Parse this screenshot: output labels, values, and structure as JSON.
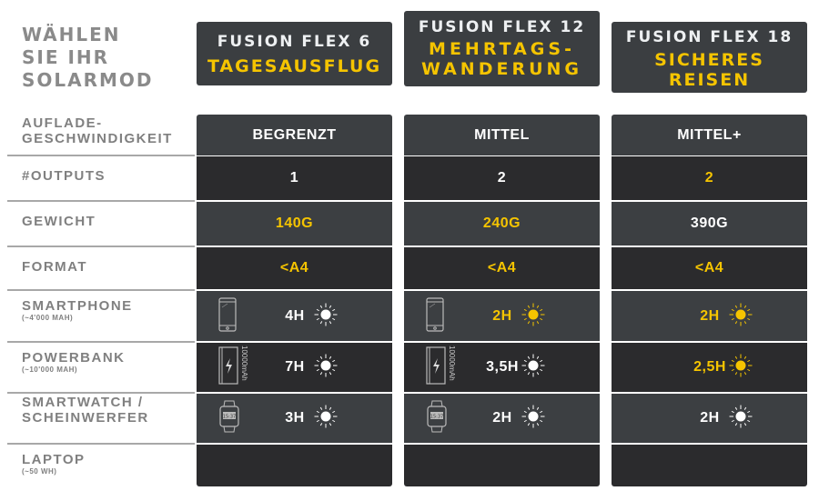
{
  "title": [
    "WÄHLEN",
    "SIE IHR",
    "SOLARMOD"
  ],
  "colors": {
    "accent": "#f5c400",
    "row_light": "#3c3f42",
    "row_dark": "#2b2b2d",
    "label": "#808080"
  },
  "rows": [
    {
      "label": "AUFLADE-",
      "label2": "GESCHWINDIGKEIT",
      "sub": ""
    },
    {
      "label": "#OUTPUTS",
      "label2": "",
      "sub": ""
    },
    {
      "label": "GEWICHT",
      "label2": "",
      "sub": ""
    },
    {
      "label": "FORMAT",
      "label2": "",
      "sub": ""
    },
    {
      "label": "SMARTPHONE",
      "label2": "",
      "sub": "(~4'000 MAH)"
    },
    {
      "label": "POWERBANK",
      "label2": "",
      "sub": "(~10'000 MAH)"
    },
    {
      "label": "SMARTWATCH /",
      "label2": "SCHEINWERFER",
      "sub": ""
    },
    {
      "label": "LAPTOP",
      "label2": "",
      "sub": "(~50 WH)"
    }
  ],
  "powerbank_icon_text": "10000mAh",
  "products": [
    {
      "model": "FUSION FLEX 6",
      "use": [
        "TAGESAUSFLUG"
      ],
      "cells": [
        {
          "v": "BEGRENZT",
          "hl": false
        },
        {
          "v": "1",
          "hl": false
        },
        {
          "v": "140G",
          "hl": true
        },
        {
          "v": "<A4",
          "hl": true
        },
        {
          "v": "4H",
          "hl": false,
          "icon": "phone-icon"
        },
        {
          "v": "7H",
          "hl": false,
          "icon": "powerbank-icon"
        },
        {
          "v": "3H",
          "hl": false,
          "icon": "smartwatch-icon"
        },
        {
          "v": ""
        }
      ]
    },
    {
      "model": "FUSION FLEX 12",
      "use": [
        "MEHRTAGS-",
        "WANDERUNG"
      ],
      "cells": [
        {
          "v": "MITTEL",
          "hl": false
        },
        {
          "v": "2",
          "hl": false
        },
        {
          "v": "240G",
          "hl": true
        },
        {
          "v": "<A4",
          "hl": true
        },
        {
          "v": "2H",
          "hl": true,
          "icon": "phone-icon"
        },
        {
          "v": "3,5H",
          "hl": false,
          "icon": "powerbank-icon"
        },
        {
          "v": "2H",
          "hl": false,
          "icon": "smartwatch-icon"
        },
        {
          "v": ""
        }
      ]
    },
    {
      "model": "FUSION FLEX 18",
      "use": [
        "SICHERES",
        "REISEN"
      ],
      "cells": [
        {
          "v": "MITTEL+",
          "hl": false
        },
        {
          "v": "2",
          "hl": true
        },
        {
          "v": "390G",
          "hl": false
        },
        {
          "v": "<A4",
          "hl": true
        },
        {
          "v": "2H",
          "hl": true
        },
        {
          "v": "2,5H",
          "hl": true
        },
        {
          "v": "2H",
          "hl": false
        },
        {
          "v": ""
        }
      ]
    }
  ]
}
